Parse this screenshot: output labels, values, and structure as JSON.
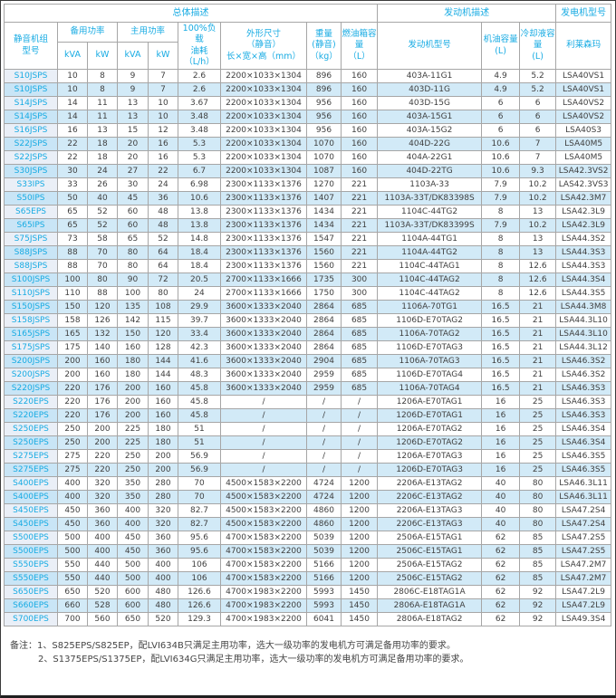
{
  "colors": {
    "accent_blue": "#17ABE3",
    "row_alt_bg": "#D2EAF7",
    "model_white_bg": "#EAEFF7",
    "model_alt_bg": "#C9E5F6",
    "grid_line": "#a6a6a6",
    "text_dark": "#3f3f3f"
  },
  "table": {
    "band_headers": {
      "overall": "总体描述",
      "engine_desc": "发动机描述",
      "alternator_model": "发电机型号"
    },
    "column_headers": {
      "model": "静音机组\n型号",
      "standby_power": "备用功率",
      "prime_power": "主用功率",
      "kva": "kVA",
      "kw": "kW",
      "fuel_100_load": "100%负载\n油耗\n（L/h）",
      "dimensions": "外形尺寸\n（静音）\n长×宽×高（mm）",
      "weight": "重量\n(静音)\n（kg）",
      "fuel_tank": "燃油箱容\n量\n（L）",
      "engine_model": "发动机型号",
      "oil_capacity": "机油容量\n(L)",
      "coolant_capacity": "冷却液容量\n(L)",
      "leroy_somer": "利莱森玛"
    },
    "rows": [
      [
        "S10JSPS",
        "10",
        "8",
        "9",
        "7",
        "2.6",
        "2200×1033×1304",
        "896",
        "160",
        "403A-11G1",
        "4.9",
        "5.2",
        "LSA40VS1"
      ],
      [
        "S10JSPS",
        "10",
        "8",
        "9",
        "7",
        "2.6",
        "2200×1033×1304",
        "896",
        "160",
        "403D-11G",
        "4.9",
        "5.2",
        "LSA40VS1"
      ],
      [
        "S14JSPS",
        "14",
        "11",
        "13",
        "10",
        "3.67",
        "2200×1033×1304",
        "956",
        "160",
        "403D-15G",
        "6",
        "6",
        "LSA40VS2"
      ],
      [
        "S14JSPS",
        "14",
        "11",
        "13",
        "10",
        "3.48",
        "2200×1033×1304",
        "956",
        "160",
        "403A-15G1",
        "6",
        "6",
        "LSA40VS2"
      ],
      [
        "S16JSPS",
        "16",
        "13",
        "15",
        "12",
        "3.48",
        "2200×1033×1304",
        "956",
        "160",
        "403A-15G2",
        "6",
        "6",
        "LSA40S3"
      ],
      [
        "S22JSPS",
        "22",
        "18",
        "20",
        "16",
        "5.3",
        "2200×1033×1304",
        "1070",
        "160",
        "404D-22G",
        "10.6",
        "7",
        "LSA40M5"
      ],
      [
        "S22JSPS",
        "22",
        "18",
        "20",
        "16",
        "5.3",
        "2200×1033×1304",
        "1070",
        "160",
        "404A-22G1",
        "10.6",
        "7",
        "LSA40M5"
      ],
      [
        "S30JSPS",
        "30",
        "24",
        "27",
        "22",
        "6.7",
        "2200×1033×1304",
        "1087",
        "160",
        "404D-22TG",
        "10.6",
        "9.3",
        "LSA42.3VS2"
      ],
      [
        "S33IPS",
        "33",
        "26",
        "30",
        "24",
        "6.98",
        "2300×1133×1376",
        "1270",
        "221",
        "1103A-33",
        "7.9",
        "10.2",
        "LAS42.3VS3"
      ],
      [
        "S50IPS",
        "50",
        "40",
        "45",
        "36",
        "10.6",
        "2300×1133×1376",
        "1407",
        "221",
        "1103A-33T/DK83398S",
        "7.9",
        "10.2",
        "LSA42.3M7"
      ],
      [
        "S65EPS",
        "65",
        "52",
        "60",
        "48",
        "13.8",
        "2300×1133×1376",
        "1434",
        "221",
        "1104C-44TG2",
        "8",
        "13",
        "LSA42.3L9"
      ],
      [
        "S65IPS",
        "65",
        "52",
        "60",
        "48",
        "13.8",
        "2300×1133×1376",
        "1434",
        "221",
        "1103A-33T/DK83399S",
        "7.9",
        "10.2",
        "LSA42.3L9"
      ],
      [
        "S75JSPS",
        "73",
        "58",
        "65",
        "52",
        "14.8",
        "2300×1133×1376",
        "1547",
        "221",
        "1104A-44TG1",
        "8",
        "13",
        "LSA44.3S2"
      ],
      [
        "S88JSPS",
        "88",
        "70",
        "80",
        "64",
        "18.4",
        "2300×1133×1376",
        "1560",
        "221",
        "1104A-44TG2",
        "8",
        "13",
        "LSA44.3S3"
      ],
      [
        "S88JSPS",
        "88",
        "70",
        "80",
        "64",
        "18.4",
        "2300×1133×1376",
        "1560",
        "221",
        "1104C-44TAG1",
        "8",
        "12.6",
        "LSA44.3S3"
      ],
      [
        "S100JSPS",
        "100",
        "80",
        "90",
        "72",
        "20.5",
        "2700×1133×1666",
        "1735",
        "300",
        "1104C-44TAG2",
        "8",
        "12.6",
        "LSA44.3S4"
      ],
      [
        "S110JSPS",
        "110",
        "88",
        "100",
        "80",
        "24",
        "2700×1133×1666",
        "1750",
        "300",
        "1104C-44TAG2",
        "8",
        "12.6",
        "LSA44.3S5"
      ],
      [
        "S150JSPS",
        "150",
        "120",
        "135",
        "108",
        "29.9",
        "3600×1333×2040",
        "2864",
        "685",
        "1106A-70TG1",
        "16.5",
        "21",
        "LSA44.3M8"
      ],
      [
        "S158JSPS",
        "158",
        "126",
        "142",
        "115",
        "39.7",
        "3600×1333×2040",
        "2864",
        "685",
        "1106D-E70TAG2",
        "16.5",
        "21",
        "LSA44.3L10"
      ],
      [
        "S165JSPS",
        "165",
        "132",
        "150",
        "120",
        "33.4",
        "3600×1333×2040",
        "2864",
        "685",
        "1106A-70TAG2",
        "16.5",
        "21",
        "LSA44.3L10"
      ],
      [
        "S175JSPS",
        "175",
        "140",
        "160",
        "128",
        "42.3",
        "3600×1333×2040",
        "2864",
        "685",
        "1106D-E70TAG3",
        "16.5",
        "21",
        "LSA44.3L12"
      ],
      [
        "S200JSPS",
        "200",
        "160",
        "180",
        "144",
        "41.6",
        "3600×1333×2040",
        "2904",
        "685",
        "1106A-70TAG3",
        "16.5",
        "21",
        "LSA46.3S2"
      ],
      [
        "S200JSPS",
        "200",
        "160",
        "180",
        "144",
        "48.3",
        "3600×1333×2040",
        "2959",
        "685",
        "1106D-E70TAG4",
        "16.5",
        "21",
        "LSA46.3S2"
      ],
      [
        "S220JSPS",
        "220",
        "176",
        "200",
        "160",
        "45.8",
        "3600×1333×2040",
        "2959",
        "685",
        "1106A-70TAG4",
        "16.5",
        "21",
        "LSA46.3S3"
      ],
      [
        "S220EPS",
        "220",
        "176",
        "200",
        "160",
        "45.8",
        "/",
        "/",
        "/",
        "1206A-E70TAG1",
        "16",
        "25",
        "LSA46.3S3"
      ],
      [
        "S220EPS",
        "220",
        "176",
        "200",
        "160",
        "45.8",
        "/",
        "/",
        "/",
        "1206D-E70TAG1",
        "16",
        "25",
        "LSA46.3S3"
      ],
      [
        "S250EPS",
        "250",
        "200",
        "225",
        "180",
        "51",
        "/",
        "/",
        "/",
        "1206A-E70TAG2",
        "16",
        "25",
        "LSA46.3S4"
      ],
      [
        "S250EPS",
        "250",
        "200",
        "225",
        "180",
        "51",
        "/",
        "/",
        "/",
        "1206D-E70TAG2",
        "16",
        "25",
        "LSA46.3S4"
      ],
      [
        "S275EPS",
        "275",
        "220",
        "250",
        "200",
        "56.9",
        "/",
        "/",
        "/",
        "1206A-E70TAG3",
        "16",
        "25",
        "LSA46.3S5"
      ],
      [
        "S275EPS",
        "275",
        "220",
        "250",
        "200",
        "56.9",
        "/",
        "/",
        "/",
        "1206D-E70TAG3",
        "16",
        "25",
        "LSA46.3S5"
      ],
      [
        "S400EPS",
        "400",
        "320",
        "350",
        "280",
        "70",
        "4500×1583×2200",
        "4724",
        "1200",
        "2206A-E13TAG2",
        "40",
        "80",
        "LSA46.3L11"
      ],
      [
        "S400EPS",
        "400",
        "320",
        "350",
        "280",
        "70",
        "4500×1583×2200",
        "4724",
        "1200",
        "2206C-E13TAG2",
        "40",
        "80",
        "LSA46.3L11"
      ],
      [
        "S450EPS",
        "450",
        "360",
        "400",
        "320",
        "82.7",
        "4500×1583×2200",
        "4860",
        "1200",
        "2206A-E13TAG3",
        "40",
        "80",
        "LSA47.2S4"
      ],
      [
        "S450EPS",
        "450",
        "360",
        "400",
        "320",
        "82.7",
        "4500×1583×2200",
        "4860",
        "1200",
        "2206C-E13TAG3",
        "40",
        "80",
        "LSA47.2S4"
      ],
      [
        "S500EPS",
        "500",
        "400",
        "450",
        "360",
        "95.6",
        "4700×1583×2200",
        "5039",
        "1200",
        "2506A-E15TAG1",
        "62",
        "85",
        "LSA47.2S5"
      ],
      [
        "S500EPS",
        "500",
        "400",
        "450",
        "360",
        "95.6",
        "4700×1583×2200",
        "5039",
        "1200",
        "2506C-E15TAG1",
        "62",
        "85",
        "LSA47.2S5"
      ],
      [
        "S550EPS",
        "550",
        "440",
        "500",
        "400",
        "106",
        "4700×1583×2200",
        "5166",
        "1200",
        "2506A-E15TAG2",
        "62",
        "85",
        "LSA47.2M7"
      ],
      [
        "S550EPS",
        "550",
        "440",
        "500",
        "400",
        "106",
        "4700×1583×2200",
        "5166",
        "1200",
        "2506C-E15TAG2",
        "62",
        "85",
        "LSA47.2M7"
      ],
      [
        "S650EPS",
        "650",
        "520",
        "600",
        "480",
        "126.6",
        "4700×1983×2200",
        "5993",
        "1450",
        "2806C-E18TAG1A",
        "62",
        "92",
        "LSA47.2L9"
      ],
      [
        "S660EPS",
        "660",
        "528",
        "600",
        "480",
        "126.6",
        "4700×1983×2200",
        "5993",
        "1450",
        "2806A-E18TAG1A",
        "62",
        "92",
        "LSA47.2L9"
      ],
      [
        "S700EPS",
        "700",
        "560",
        "650",
        "520",
        "129.3",
        "4700×1983×2200",
        "6041",
        "1450",
        "2806A-E18TAG2",
        "62",
        "92",
        "LSA49.3S4"
      ]
    ]
  },
  "notes": {
    "prefix": "备注：",
    "items": [
      "1、S825EPS/S825EP，配LVI634B只满足主用功率，选大一级功率的发电机方可满足备用功率的要求。",
      "2、S1375EPS/S1375EP，配LVI634G只满足主用功率，选大一级功率的发电机方可满足备用功率的要求。"
    ]
  }
}
